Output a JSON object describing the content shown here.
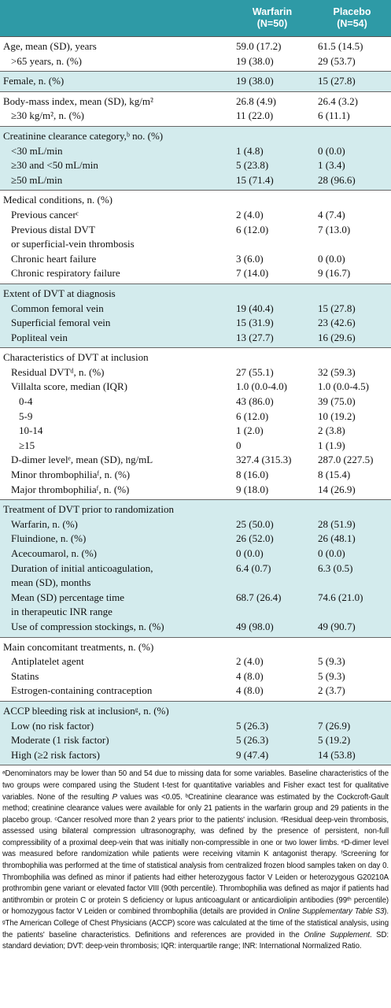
{
  "header": {
    "warfarin": "Warfarin\n(N=50)",
    "placebo": "Placebo\n(N=54)"
  },
  "groups": [
    [
      {
        "label": "Age, mean (SD), years",
        "warfarin": "59.0 (17.2)",
        "placebo": "61.5 (14.5)",
        "sub": [
          {
            "label": ">65 years, n. (%)",
            "warfarin": "19 (38.0)",
            "placebo": "29 (53.7)"
          }
        ]
      }
    ],
    [
      {
        "label": "Female, n. (%)",
        "warfarin": "19 (38.0)",
        "placebo": "15 (27.8)"
      }
    ],
    [
      {
        "label": "Body-mass index, mean (SD), kg/m²",
        "warfarin": "26.8 (4.9)",
        "placebo": "26.4 (3.2)",
        "sub": [
          {
            "label": "≥30 kg/m², n. (%)",
            "warfarin": "11 (22.0)",
            "placebo": "6 (11.1)"
          }
        ]
      }
    ],
    [
      {
        "label": "Creatinine clearance category,ᵇ no. (%)",
        "sub": [
          {
            "label": "<30 mL/min",
            "warfarin": "1 (4.8)",
            "placebo": "0 (0.0)"
          },
          {
            "label": "≥30 and <50 mL/min",
            "warfarin": "5 (23.8)",
            "placebo": "1 (3.4)"
          },
          {
            "label": "≥50 mL/min",
            "warfarin": "15 (71.4)",
            "placebo": "28 (96.6)"
          }
        ]
      }
    ],
    [
      {
        "label": "Medical conditions, n. (%)",
        "sub": [
          {
            "label": "Previous cancerᶜ",
            "warfarin": "2 (4.0)",
            "placebo": "4 (7.4)"
          },
          {
            "label": "Previous distal DVT\n   or superficial-vein thrombosis",
            "warfarin": "6 (12.0)",
            "placebo": "7 (13.0)"
          },
          {
            "label": "Chronic heart failure",
            "warfarin": "3 (6.0)",
            "placebo": "0 (0.0)"
          },
          {
            "label": "Chronic respiratory failure",
            "warfarin": "7 (14.0)",
            "placebo": "9 (16.7)"
          }
        ]
      }
    ],
    [
      {
        "label": "Extent of DVT at diagnosis",
        "sub": [
          {
            "label": "Common femoral vein",
            "warfarin": "19 (40.4)",
            "placebo": "15 (27.8)"
          },
          {
            "label": "Superficial femoral vein",
            "warfarin": "15 (31.9)",
            "placebo": "23 (42.6)"
          },
          {
            "label": "Popliteal vein",
            "warfarin": "13 (27.7)",
            "placebo": "16 (29.6)"
          }
        ]
      }
    ],
    [
      {
        "label": "Characteristics of DVT at inclusion",
        "sub": [
          {
            "label": "Residual DVTᵈ, n. (%)",
            "warfarin": "27 (55.1)",
            "placebo": "32 (59.3)"
          },
          {
            "label": "Villalta score, median (IQR)",
            "warfarin": "1.0 (0.0-4.0)",
            "placebo": "1.0 (0.0-4.5)",
            "sub": [
              {
                "label": "0-4",
                "warfarin": "43 (86.0)",
                "placebo": "39 (75.0)"
              },
              {
                "label": "5-9",
                "warfarin": "6 (12.0)",
                "placebo": "10 (19.2)"
              },
              {
                "label": "10-14",
                "warfarin": "1 (2.0)",
                "placebo": "2 (3.8)"
              },
              {
                "label": "≥15",
                "warfarin": "0",
                "placebo": "1 (1.9)"
              }
            ]
          },
          {
            "label": "D-dimer levelᵉ, mean (SD), ng/mL",
            "warfarin": "327.4 (315.3)",
            "placebo": "287.0 (227.5)"
          },
          {
            "label": "Minor thrombophiliaᶠ, n. (%)",
            "warfarin": "8 (16.0)",
            "placebo": "8 (15.4)"
          },
          {
            "label": "Major thrombophiliaᶠ, n. (%)",
            "warfarin": "9 (18.0)",
            "placebo": "14 (26.9)"
          }
        ]
      }
    ],
    [
      {
        "label": "Treatment of DVT prior to randomization",
        "sub": [
          {
            "label": "Warfarin, n. (%)",
            "warfarin": "25 (50.0)",
            "placebo": "28 (51.9)"
          },
          {
            "label": "Fluindione, n. (%)",
            "warfarin": "26 (52.0)",
            "placebo": "26 (48.1)"
          },
          {
            "label": "Acecoumarol, n. (%)",
            "warfarin": "0 (0.0)",
            "placebo": "0 (0.0)"
          },
          {
            "label": "Duration of initial anticoagulation,\n   mean (SD), months",
            "warfarin": "6.4 (0.7)",
            "placebo": "6.3 (0.5)"
          },
          {
            "label": "Mean (SD) percentage time\n   in therapeutic INR range",
            "warfarin": "68.7 (26.4)",
            "placebo": "74.6 (21.0)"
          },
          {
            "label": "Use of compression stockings, n. (%)",
            "warfarin": "49 (98.0)",
            "placebo": "49 (90.7)"
          }
        ]
      }
    ],
    [
      {
        "label": "Main concomitant treatments, n. (%)",
        "sub": [
          {
            "label": "Antiplatelet agent",
            "warfarin": "2 (4.0)",
            "placebo": "5 (9.3)"
          },
          {
            "label": "Statins",
            "warfarin": "4 (8.0)",
            "placebo": "5 (9.3)"
          },
          {
            "label": "Estrogen-containing contraception",
            "warfarin": "4 (8.0)",
            "placebo": "2 (3.7)"
          }
        ]
      }
    ],
    [
      {
        "label": "ACCP bleeding risk at inclusionᵍ, n. (%)",
        "sub": [
          {
            "label": "Low (no risk factor)",
            "warfarin": "5 (26.3)",
            "placebo": "7 (26.9)"
          },
          {
            "label": "Moderate (1 risk factor)",
            "warfarin": "5 (26.3)",
            "placebo": "5 (19.2)"
          },
          {
            "label": "High (≥2 risk factors)",
            "warfarin": "9 (47.4)",
            "placebo": "14 (53.8)"
          }
        ]
      }
    ]
  ],
  "footnote": [
    {
      "text": "ᵃDenominators may be lower than 50 and 54 due to missing data for some variables. Baseline characteristics of the two groups were compared using the Student t-test for quantitative variables and Fisher exact test for qualitative variables. None of the resulting "
    },
    {
      "text": "P",
      "italic": true
    },
    {
      "text": " values was <0.05. ᵇCreatinine clearance was estimated by the Cockcroft-Gault method; creatinine clearance values were available for only 21 patients in the warfarin group and 29 patients in the placebo group. ᶜCancer resolved more than 2 years prior to the patients' inclusion. ᵈResidual deep-vein thrombosis, assessed using bilateral compression ultrasonography, was defined by the presence of persistent, non-full compressibility of a proximal deep-vein that was initially non-compressible in one or two lower limbs. ᵉD-dimer level was measured before randomization while patients were receiving vitamin K antagonist therapy. ᶠScreening for thrombophilia was performed at the time of statistical analysis from centralized frozen blood samples taken on day 0. Thrombophilia was defined as minor if patients had either heterozygous factor V Leiden or heterozygous G20210A prothrombin gene variant or elevated factor VIII (90th percentile). Thrombophilia was defined as major if patients had antithrombin or protein C or protein S deficiency or lupus anticoagulant or anticardiolipin antibodies (99ᵗʰ percentile) or homozygous factor V Leiden or combined thrombophilia (details are provided in "
    },
    {
      "text": "Online Supplementary Table S3",
      "italic": true
    },
    {
      "text": "). ᵍThe American College of Chest Physicians (ACCP) score was calculated at the time of the statistical analysis, using the patients' baseline characteristics. Definitions and references are provided in the "
    },
    {
      "text": "Online Supplement",
      "italic": true
    },
    {
      "text": ". SD: standard deviation; DVT: deep-vein thrombosis; IQR: interquartile range; INR: International Normalized Ratio."
    }
  ]
}
